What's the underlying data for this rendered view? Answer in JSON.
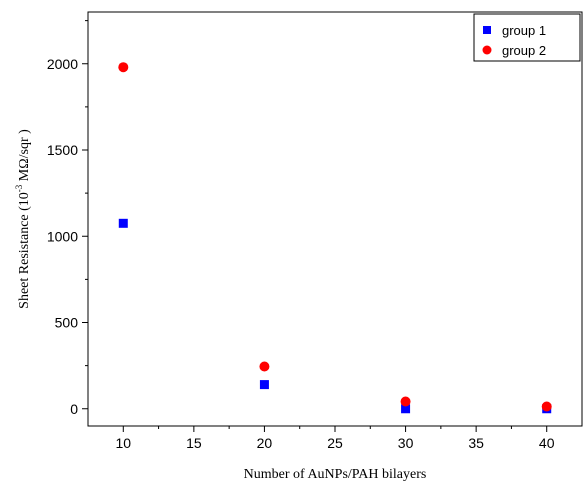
{
  "chart_data": {
    "type": "scatter",
    "title": "",
    "xlabel": "Number of AuNPs/PAH bilayers",
    "ylabel_prefix": "Sheet Resistance (10",
    "ylabel_exp": "-3",
    "ylabel_suffix": " MΩ/sqr )",
    "xlim": [
      7.5,
      42.5
    ],
    "ylim": [
      -100,
      2300
    ],
    "xticks": [
      10,
      15,
      20,
      25,
      30,
      35,
      40
    ],
    "yticks": [
      0,
      500,
      1000,
      1500,
      2000
    ],
    "grid": false,
    "legend_position": "top-right",
    "series": [
      {
        "name": "group 1",
        "marker": "square",
        "color": "#0000ff",
        "x": [
          10,
          20,
          30,
          40
        ],
        "y": [
          1075,
          140,
          0,
          0
        ]
      },
      {
        "name": "group 2",
        "marker": "circle",
        "color": "#ff0000",
        "x": [
          10,
          20,
          30,
          40
        ],
        "y": [
          1980,
          245,
          42,
          13
        ]
      }
    ]
  }
}
